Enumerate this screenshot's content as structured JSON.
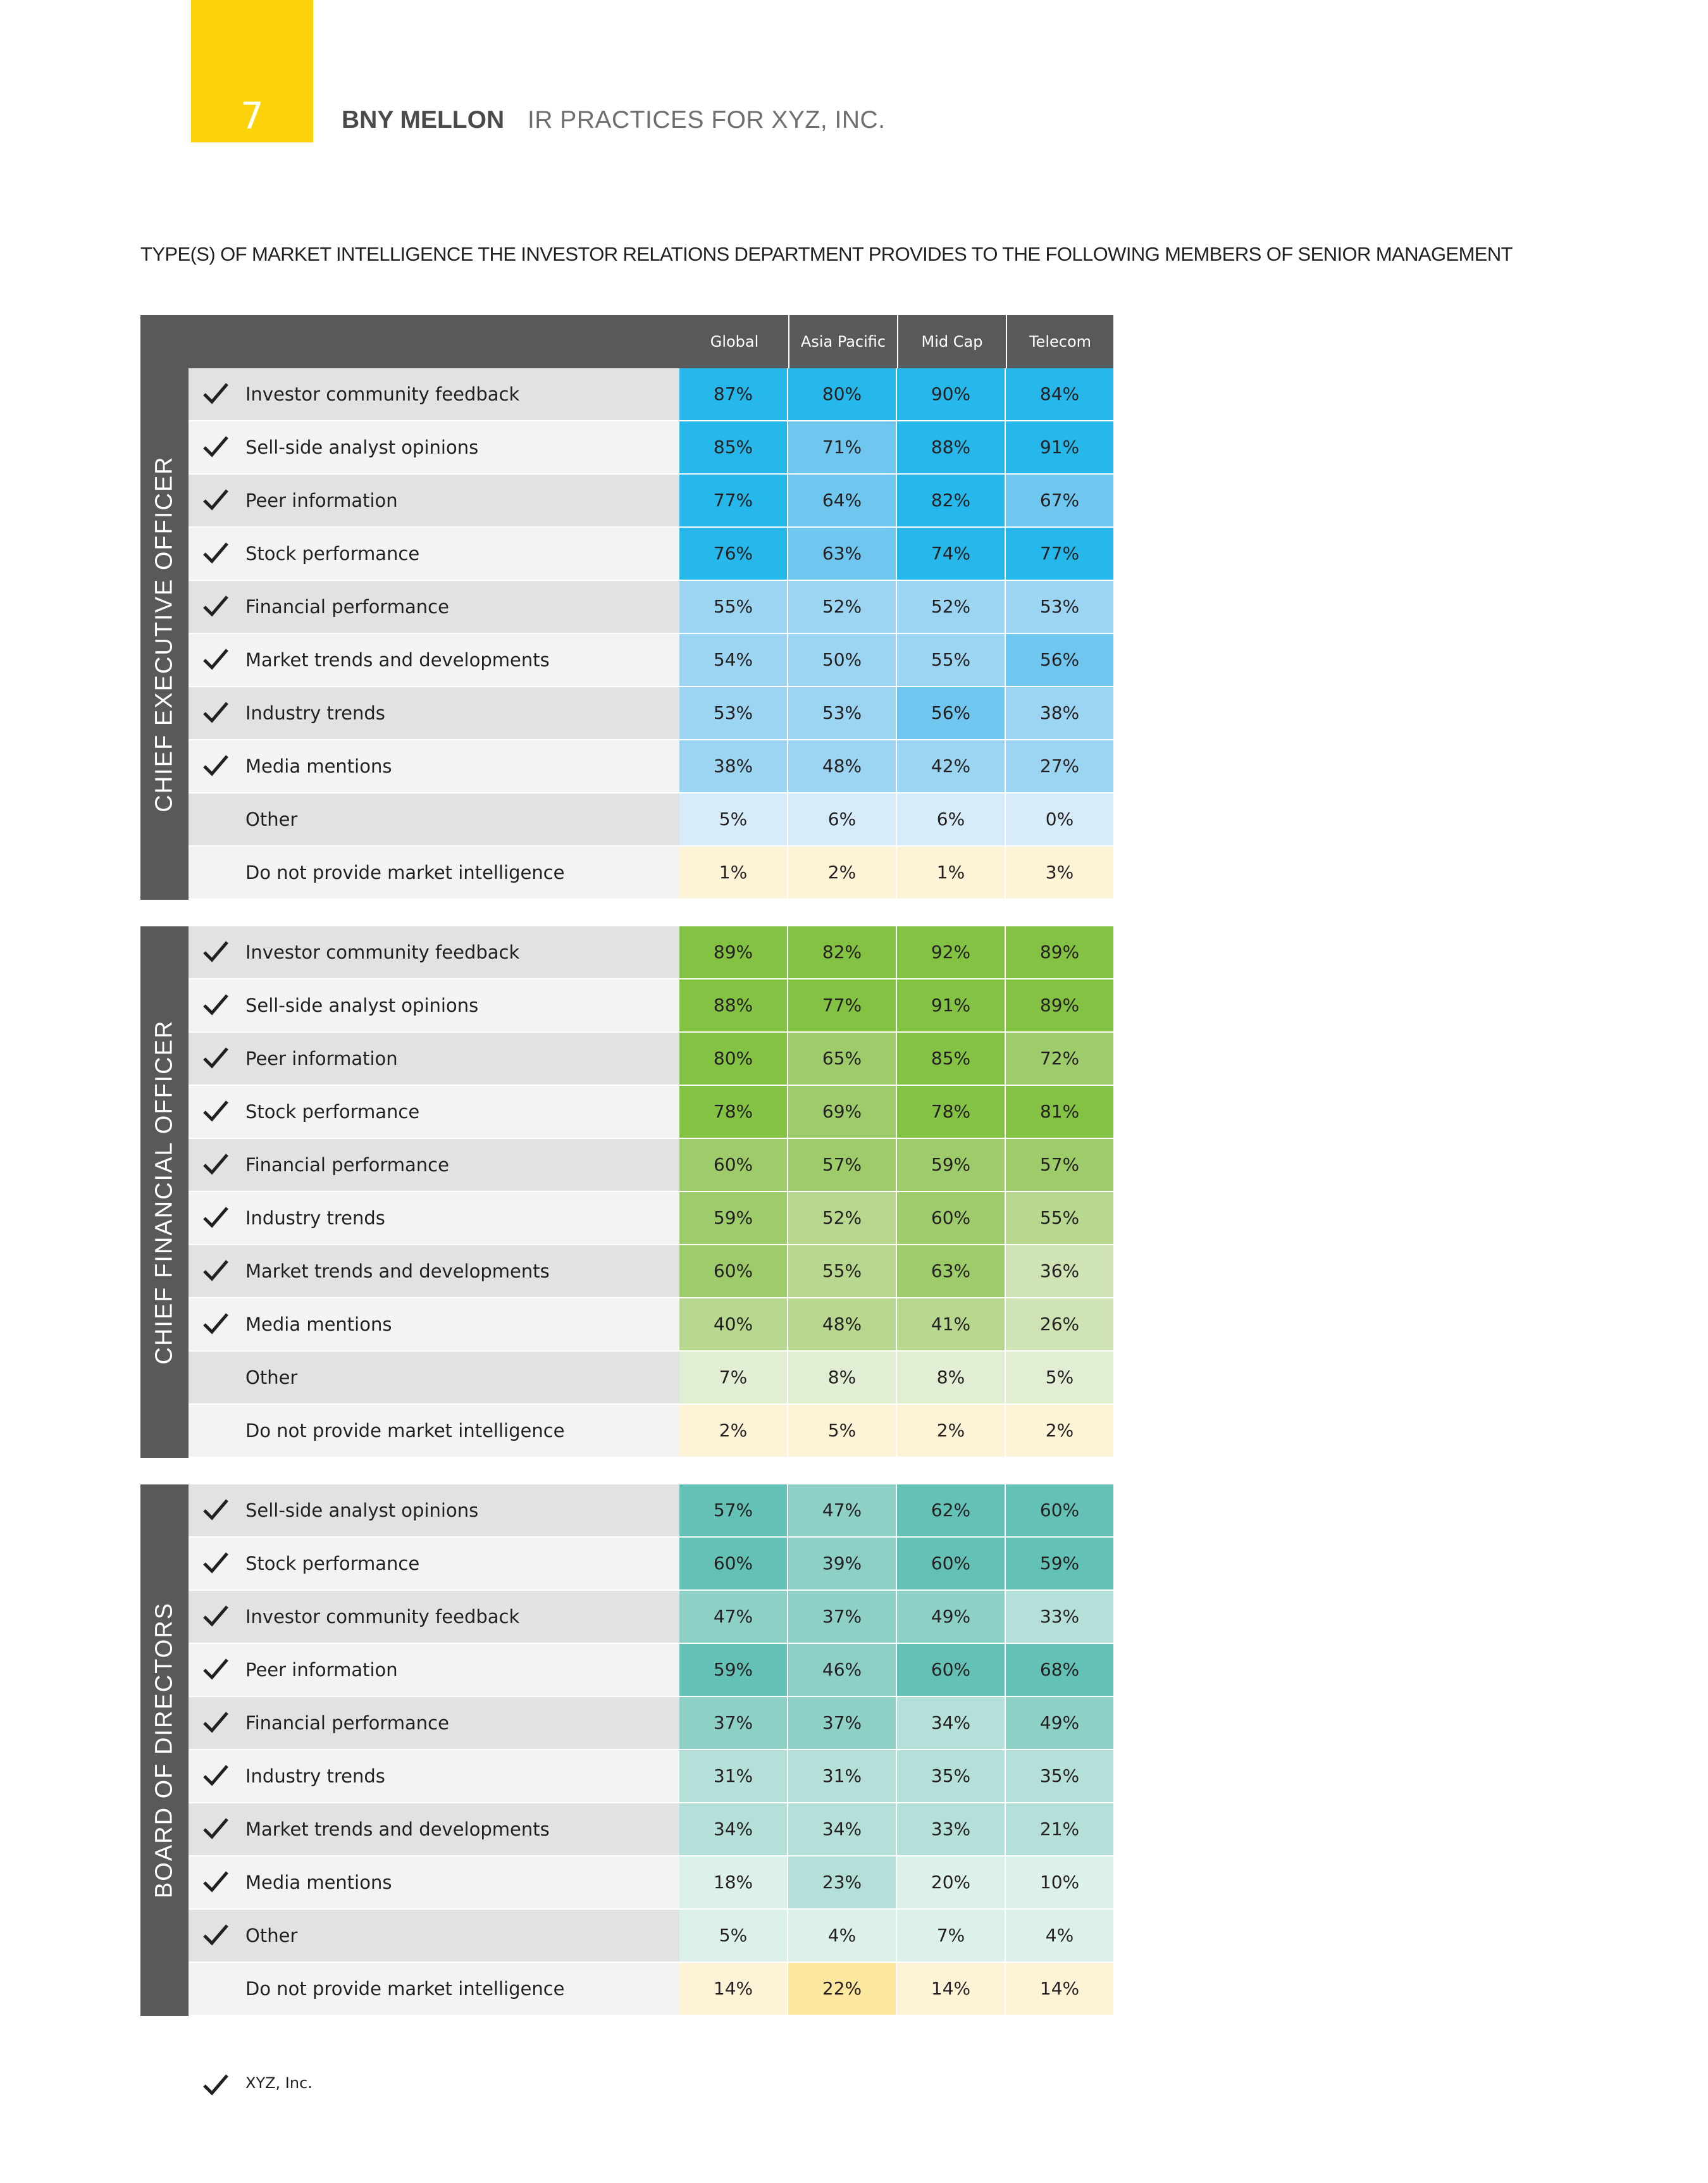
{
  "page": {
    "number": "7",
    "brand": "BNY MELLON",
    "report_title": "IR PRACTICES FOR XYZ, INC."
  },
  "section_title": "TYPE(S) OF MARKET INTELLIGENCE THE INVESTOR RELATIONS DEPARTMENT PROVIDES TO THE FOLLOWING MEMBERS OF SENIOR MANAGEMENT",
  "columns": [
    "Global",
    "Asia Pacific",
    "Mid Cap",
    "Telecom"
  ],
  "icons": {
    "check": "checkmark-icon"
  },
  "colors": {
    "header_gray": "#58595b",
    "tab_yellow": "#fcd20a",
    "blue": [
      "#d6ecf8",
      "#9cd5f2",
      "#6fc6ee",
      "#26b8ea"
    ],
    "green": [
      "#e2eed4",
      "#cfe3b4",
      "#b7d88e",
      "#9fcc6a",
      "#84c243"
    ],
    "teal": [
      "#dcf0ec",
      "#b4e0d9",
      "#8dd1c6",
      "#63c2b5"
    ],
    "cream": [
      "#fdf3d6",
      "#fce89f"
    ]
  },
  "groups": [
    {
      "label": "CHIEF EXECUTIVE OFFICER",
      "palette": "blue",
      "rows": [
        {
          "label": "Investor community feedback",
          "checked": true,
          "values": [
            "87%",
            "80%",
            "90%",
            "84%"
          ],
          "shades": [
            3,
            3,
            3,
            3
          ]
        },
        {
          "label": "Sell-side analyst opinions",
          "checked": true,
          "values": [
            "85%",
            "71%",
            "88%",
            "91%"
          ],
          "shades": [
            3,
            2,
            3,
            3
          ]
        },
        {
          "label": "Peer information",
          "checked": true,
          "values": [
            "77%",
            "64%",
            "82%",
            "67%"
          ],
          "shades": [
            3,
            2,
            3,
            2
          ]
        },
        {
          "label": "Stock performance",
          "checked": true,
          "values": [
            "76%",
            "63%",
            "74%",
            "77%"
          ],
          "shades": [
            3,
            2,
            3,
            3
          ]
        },
        {
          "label": "Financial performance",
          "checked": true,
          "values": [
            "55%",
            "52%",
            "52%",
            "53%"
          ],
          "shades": [
            1,
            1,
            1,
            1
          ]
        },
        {
          "label": "Market trends and developments",
          "checked": true,
          "values": [
            "54%",
            "50%",
            "55%",
            "56%"
          ],
          "shades": [
            1,
            1,
            1,
            2
          ]
        },
        {
          "label": "Industry trends",
          "checked": true,
          "values": [
            "53%",
            "53%",
            "56%",
            "38%"
          ],
          "shades": [
            1,
            1,
            2,
            1
          ]
        },
        {
          "label": "Media mentions",
          "checked": true,
          "values": [
            "38%",
            "48%",
            "42%",
            "27%"
          ],
          "shades": [
            1,
            1,
            1,
            1
          ]
        },
        {
          "label": "Other",
          "checked": false,
          "values": [
            "5%",
            "6%",
            "6%",
            "0%"
          ],
          "shades": [
            0,
            0,
            0,
            0
          ]
        },
        {
          "label": "Do not provide market intelligence",
          "checked": false,
          "values": [
            "1%",
            "2%",
            "1%",
            "3%"
          ],
          "shades": [
            "c0",
            "c0",
            "c0",
            "c0"
          ]
        }
      ]
    },
    {
      "label": "CHIEF FINANCIAL OFFICER",
      "palette": "green",
      "rows": [
        {
          "label": "Investor community feedback",
          "checked": true,
          "values": [
            "89%",
            "82%",
            "92%",
            "89%"
          ],
          "shades": [
            4,
            4,
            4,
            4
          ]
        },
        {
          "label": "Sell-side analyst opinions",
          "checked": true,
          "values": [
            "88%",
            "77%",
            "91%",
            "89%"
          ],
          "shades": [
            4,
            4,
            4,
            4
          ]
        },
        {
          "label": "Peer information",
          "checked": true,
          "values": [
            "80%",
            "65%",
            "85%",
            "72%"
          ],
          "shades": [
            4,
            3,
            4,
            3
          ]
        },
        {
          "label": "Stock performance",
          "checked": true,
          "values": [
            "78%",
            "69%",
            "78%",
            "81%"
          ],
          "shades": [
            4,
            3,
            4,
            4
          ]
        },
        {
          "label": "Financial performance",
          "checked": true,
          "values": [
            "60%",
            "57%",
            "59%",
            "57%"
          ],
          "shades": [
            3,
            3,
            3,
            3
          ]
        },
        {
          "label": "Industry trends",
          "checked": true,
          "values": [
            "59%",
            "52%",
            "60%",
            "55%"
          ],
          "shades": [
            3,
            2,
            3,
            2
          ]
        },
        {
          "label": "Market trends and developments",
          "checked": true,
          "values": [
            "60%",
            "55%",
            "63%",
            "36%"
          ],
          "shades": [
            3,
            2,
            3,
            1
          ]
        },
        {
          "label": "Media mentions",
          "checked": true,
          "values": [
            "40%",
            "48%",
            "41%",
            "26%"
          ],
          "shades": [
            2,
            2,
            2,
            1
          ]
        },
        {
          "label": "Other",
          "checked": false,
          "values": [
            "7%",
            "8%",
            "8%",
            "5%"
          ],
          "shades": [
            0,
            0,
            0,
            0
          ]
        },
        {
          "label": "Do not provide market intelligence",
          "checked": false,
          "values": [
            "2%",
            "5%",
            "2%",
            "2%"
          ],
          "shades": [
            "c0",
            "c0",
            "c0",
            "c0"
          ]
        }
      ]
    },
    {
      "label": "BOARD OF DIRECTORS",
      "palette": "teal",
      "rows": [
        {
          "label": "Sell-side analyst opinions",
          "checked": true,
          "values": [
            "57%",
            "47%",
            "62%",
            "60%"
          ],
          "shades": [
            3,
            2,
            3,
            3
          ]
        },
        {
          "label": "Stock performance",
          "checked": true,
          "values": [
            "60%",
            "39%",
            "60%",
            "59%"
          ],
          "shades": [
            3,
            2,
            3,
            3
          ]
        },
        {
          "label": "Investor community feedback",
          "checked": true,
          "values": [
            "47%",
            "37%",
            "49%",
            "33%"
          ],
          "shades": [
            2,
            2,
            2,
            1
          ]
        },
        {
          "label": "Peer information",
          "checked": true,
          "values": [
            "59%",
            "46%",
            "60%",
            "68%"
          ],
          "shades": [
            3,
            2,
            3,
            3
          ]
        },
        {
          "label": "Financial performance",
          "checked": true,
          "values": [
            "37%",
            "37%",
            "34%",
            "49%"
          ],
          "shades": [
            2,
            2,
            1,
            2
          ]
        },
        {
          "label": "Industry trends",
          "checked": true,
          "values": [
            "31%",
            "31%",
            "35%",
            "35%"
          ],
          "shades": [
            1,
            1,
            1,
            1
          ]
        },
        {
          "label": "Market trends and developments",
          "checked": true,
          "values": [
            "34%",
            "34%",
            "33%",
            "21%"
          ],
          "shades": [
            1,
            1,
            1,
            1
          ]
        },
        {
          "label": "Media mentions",
          "checked": true,
          "values": [
            "18%",
            "23%",
            "20%",
            "10%"
          ],
          "shades": [
            0,
            1,
            0,
            0
          ]
        },
        {
          "label": "Other",
          "checked": true,
          "values": [
            "5%",
            "4%",
            "7%",
            "4%"
          ],
          "shades": [
            0,
            0,
            0,
            0
          ]
        },
        {
          "label": "Do not provide market intelligence",
          "checked": false,
          "values": [
            "14%",
            "22%",
            "14%",
            "14%"
          ],
          "shades": [
            "c0",
            "c1",
            "c0",
            "c0"
          ]
        }
      ]
    }
  ],
  "footer": {
    "label": "XYZ, Inc."
  }
}
